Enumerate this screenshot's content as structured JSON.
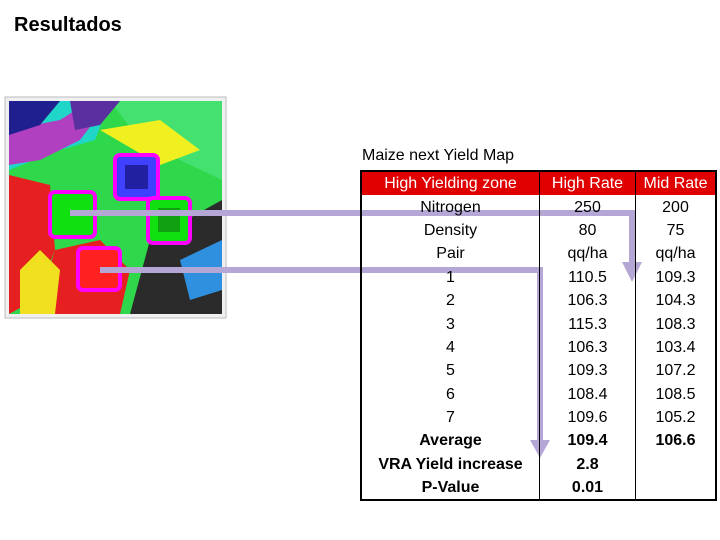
{
  "header": {
    "title": "Resultados"
  },
  "table": {
    "caption": "Maize next Yield Map",
    "columns": [
      "High Yielding zone",
      "High Rate",
      "Mid Rate"
    ],
    "rows": [
      [
        "Nitrogen",
        "250",
        "200"
      ],
      [
        "Density",
        "80",
        "75"
      ],
      [
        "Pair",
        "qq/ha",
        "qq/ha"
      ],
      [
        "1",
        "110.5",
        "109.3"
      ],
      [
        "2",
        "106.3",
        "104.3"
      ],
      [
        "3",
        "115.3",
        "108.3"
      ],
      [
        "4",
        "106.3",
        "103.4"
      ],
      [
        "5",
        "109.3",
        "107.2"
      ],
      [
        "6",
        "108.4",
        "108.5"
      ],
      [
        "7",
        "109.6",
        "105.2"
      ],
      [
        "Average",
        "109.4",
        "106.6"
      ],
      [
        "VRA Yield increase",
        "2.8"
      ],
      [
        "P-Value",
        "0.01"
      ]
    ]
  }
}
